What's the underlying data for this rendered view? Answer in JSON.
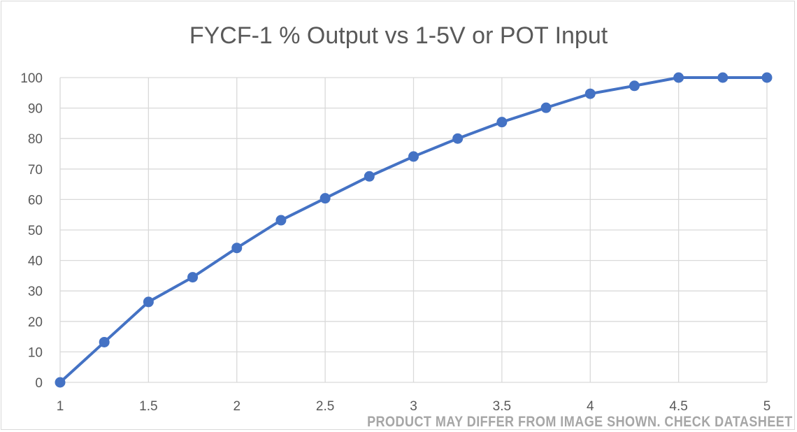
{
  "chart_data": {
    "type": "line",
    "title": "FYCF-1 % Output vs 1-5V or POT Input",
    "xlabel": "",
    "ylabel": "",
    "xlim": [
      1,
      5
    ],
    "ylim": [
      0,
      100
    ],
    "x_ticks": [
      "1",
      "1.5",
      "2",
      "2.5",
      "3",
      "3.5",
      "4",
      "4.5",
      "5"
    ],
    "y_ticks": [
      "0",
      "10",
      "20",
      "30",
      "40",
      "50",
      "60",
      "70",
      "80",
      "90",
      "100"
    ],
    "grid": true,
    "legend": "none",
    "series": [
      {
        "color": "#4472c4",
        "x": [
          1,
          1.25,
          1.5,
          1.75,
          2,
          2.25,
          2.5,
          2.75,
          3,
          3.25,
          3.5,
          3.75,
          4,
          4.25,
          4.5,
          4.75,
          5
        ],
        "y": [
          0,
          13.2,
          26.4,
          34.5,
          44.1,
          53.2,
          60.4,
          67.6,
          74.1,
          80,
          85.4,
          90.1,
          94.7,
          97.3,
          100,
          100,
          100
        ]
      }
    ]
  },
  "watermark": "PRODUCT MAY DIFFER FROM IMAGE SHOWN. CHECK DATASHEET"
}
